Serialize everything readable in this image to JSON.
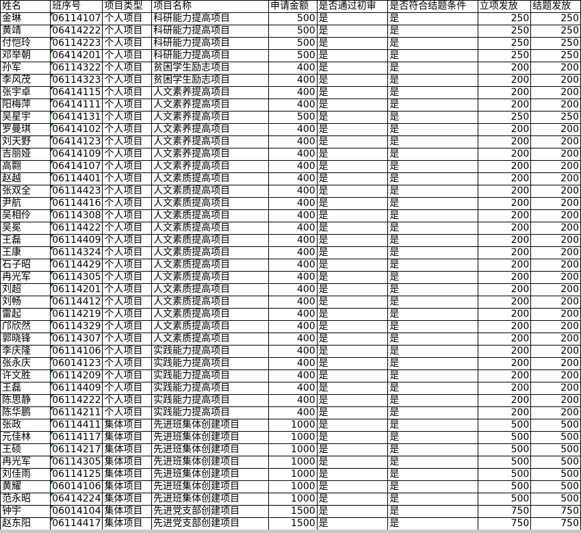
{
  "headers": [
    "姓名",
    "班序号",
    "项目类型",
    "项目名称",
    "申请金额",
    "是否通过初审",
    "是否符合结题条件",
    "立项发放",
    "结题发放"
  ],
  "rows": [
    [
      "金琳",
      "06114107",
      "个人项目",
      "科研能力提高项目",
      "500",
      "是",
      "是",
      "250",
      "250"
    ],
    [
      "黄靖",
      "06414222",
      "个人项目",
      "科研能力提高项目",
      "500",
      "是",
      "是",
      "250",
      "250"
    ],
    [
      "付恺玲",
      "06114223",
      "个人项目",
      "科研能力提高项目",
      "500",
      "是",
      "是",
      "250",
      "250"
    ],
    [
      "邓举朝",
      "06414201",
      "个人项目",
      "科研能力提高项目",
      "500",
      "是",
      "是",
      "250",
      "250"
    ],
    [
      "孙军",
      "06114322",
      "个人项目",
      "贫困学生励志项目",
      "400",
      "是",
      "是",
      "200",
      "200"
    ],
    [
      "李风茂",
      "06114323",
      "个人项目",
      "贫困学生励志项目",
      "400",
      "是",
      "是",
      "200",
      "200"
    ],
    [
      "张宇卓",
      "06414115",
      "个人项目",
      "人文素养提高项目",
      "400",
      "是",
      "是",
      "200",
      "200"
    ],
    [
      "阳梅萍",
      "06414111",
      "个人项目",
      "人文素养提高项目",
      "400",
      "是",
      "是",
      "200",
      "200"
    ],
    [
      "吴星宇",
      "06414131",
      "个人项目",
      "人文素养提高项目",
      "500",
      "是",
      "是",
      "250",
      "250"
    ],
    [
      "罗曼琪",
      "06414102",
      "个人项目",
      "人文素养提高项目",
      "400",
      "是",
      "是",
      "200",
      "200"
    ],
    [
      "刘天野",
      "06414123",
      "个人项目",
      "人文素养提高项目",
      "400",
      "是",
      "是",
      "200",
      "200"
    ],
    [
      "吉丽娅",
      "06414109",
      "个人项目",
      "人文素养提高项目",
      "400",
      "是",
      "是",
      "200",
      "200"
    ],
    [
      "高翾",
      "06414107",
      "个人项目",
      "人文素养提高项目",
      "400",
      "是",
      "是",
      "200",
      "200"
    ],
    [
      "赵越",
      "06114401",
      "个人项目",
      "人文素质提高项目",
      "400",
      "是",
      "是",
      "200",
      "200"
    ],
    [
      "张双全",
      "06114423",
      "个人项目",
      "人文素质提高项目",
      "400",
      "是",
      "是",
      "200",
      "200"
    ],
    [
      "尹航",
      "06114416",
      "个人项目",
      "人文素质提高项目",
      "400",
      "是",
      "是",
      "200",
      "200"
    ],
    [
      "吴相伶",
      "06114308",
      "个人项目",
      "人文素质提高项目",
      "400",
      "是",
      "是",
      "200",
      "200"
    ],
    [
      "吴冕",
      "06114422",
      "个人项目",
      "人文素质提高项目",
      "400",
      "是",
      "是",
      "200",
      "200"
    ],
    [
      "王磊",
      "06114409",
      "个人项目",
      "人文素质提高项目",
      "400",
      "是",
      "是",
      "200",
      "200"
    ],
    [
      "王康",
      "06114324",
      "个人项目",
      "人文素质提高项目",
      "400",
      "是",
      "是",
      "200",
      "200"
    ],
    [
      "石子昭",
      "06114429",
      "个人项目",
      "人文素质提高项目",
      "400",
      "是",
      "是",
      "200",
      "200"
    ],
    [
      "冉光军",
      "06114305",
      "个人项目",
      "人文素质提高项目",
      "400",
      "是",
      "是",
      "200",
      "200"
    ],
    [
      "刘超",
      "06114201",
      "个人项目",
      "人文素质提高项目",
      "400",
      "是",
      "是",
      "200",
      "200"
    ],
    [
      "刘畅",
      "06114412",
      "个人项目",
      "人文素质提高项目",
      "400",
      "是",
      "是",
      "200",
      "200"
    ],
    [
      "雷起",
      "06114219",
      "个人项目",
      "人文素质提高项目",
      "400",
      "是",
      "是",
      "200",
      "200"
    ],
    [
      "邝欣然",
      "06114329",
      "个人项目",
      "人文素质提高项目",
      "400",
      "是",
      "是",
      "200",
      "200"
    ],
    [
      "郭晓锋",
      "06114307",
      "个人项目",
      "人文素质提高项目",
      "400",
      "是",
      "是",
      "200",
      "200"
    ],
    [
      "李庆隆",
      "06114106",
      "个人项目",
      "实践能力提高项目",
      "400",
      "是",
      "是",
      "200",
      "200"
    ],
    [
      "张永庆",
      "06014123",
      "个人项目",
      "实践能力提高项目",
      "400",
      "是",
      "是",
      "200",
      "200"
    ],
    [
      "许文胜",
      "06114209",
      "个人项目",
      "实践能力提高项目",
      "400",
      "是",
      "是",
      "200",
      "200"
    ],
    [
      "王磊",
      "06114409",
      "个人项目",
      "实践能力提高项目",
      "400",
      "是",
      "是",
      "200",
      "200"
    ],
    [
      "陈思静",
      "06114222",
      "个人项目",
      "实践能力提高项目",
      "400",
      "是",
      "是",
      "200",
      "200"
    ],
    [
      "陈华鹏",
      "06114211",
      "个人项目",
      "实践能力提高项目",
      "400",
      "是",
      "是",
      "200",
      "200"
    ],
    [
      "张政",
      "06114411",
      "集体项目",
      "先进班集体创建项目",
      "1000",
      "是",
      "是",
      "500",
      "500"
    ],
    [
      "元佳林",
      "06114117",
      "集体项目",
      "先进班集体创建项目",
      "1000",
      "是",
      "是",
      "500",
      "500"
    ],
    [
      "王硕",
      "06114217",
      "集体项目",
      "先进班集体创建项目",
      "1000",
      "是",
      "是",
      "500",
      "500"
    ],
    [
      "冉光军",
      "06114305",
      "集体项目",
      "先进班集体创建项目",
      "1000",
      "是",
      "是",
      "500",
      "500"
    ],
    [
      "刘佳雨",
      "06114125",
      "集体项目",
      "先进班集体创建项目",
      "1000",
      "是",
      "是",
      "500",
      "500"
    ],
    [
      "黄耀",
      "06014106",
      "集体项目",
      "先进班集体创建项目",
      "1000",
      "是",
      "是",
      "500",
      "500"
    ],
    [
      "范永昭",
      "06414224",
      "集体项目",
      "先进班集体创建项目",
      "1000",
      "是",
      "是",
      "500",
      "500"
    ],
    [
      "钟宇",
      "06014104",
      "集体项目",
      "先进党支部创建项目",
      "1500",
      "是",
      "是",
      "750",
      "750"
    ],
    [
      "赵东阳",
      "06114417",
      "集体项目",
      "先进党支部创建项目",
      "1500",
      "是",
      "是",
      "750",
      "750"
    ]
  ]
}
